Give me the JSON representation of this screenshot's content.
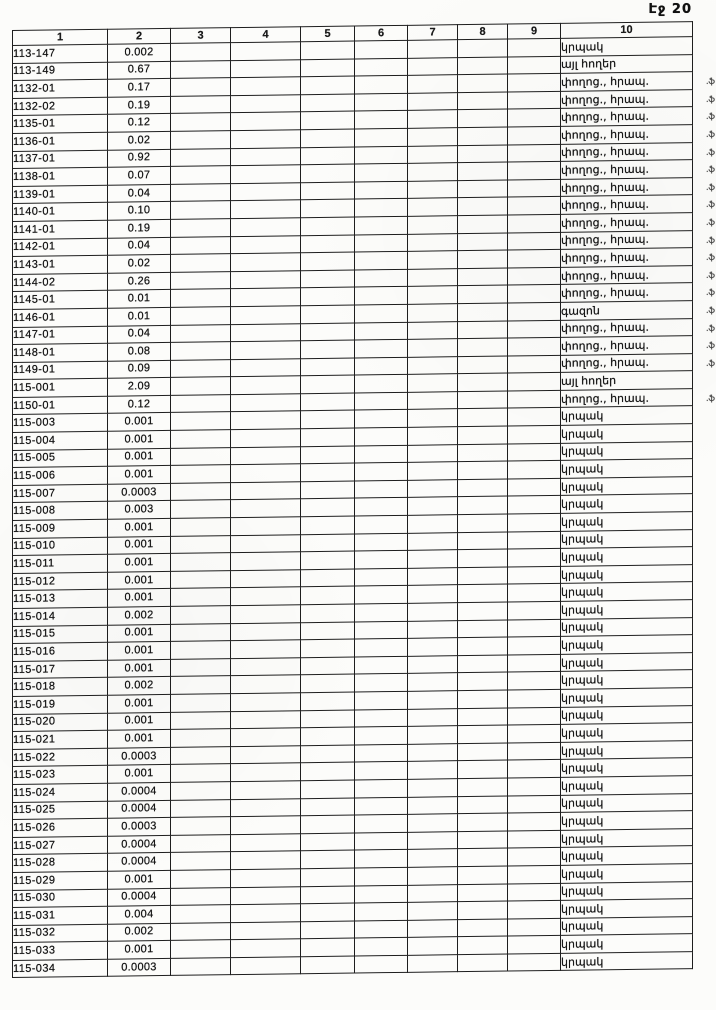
{
  "page": {
    "label": "Էջ 20"
  },
  "colors": {
    "ink": "#161616",
    "border": "#1e1e1e",
    "paper": "#fcfcfa",
    "mark": "#4a4a4a"
  },
  "table": {
    "columns": [
      "1",
      "2",
      "3",
      "4",
      "5",
      "6",
      "7",
      "8",
      "9",
      "10"
    ],
    "mark_glyph": ".ֆ",
    "rows": [
      {
        "code": "113-147",
        "area": "0.002",
        "use": "կրպակ",
        "mark": false
      },
      {
        "code": "113-149",
        "area": "0.67",
        "use": "այլ հողեր",
        "mark": false
      },
      {
        "code": "1132-01",
        "area": "0.17",
        "use": "փողոց., հրապ.",
        "mark": true
      },
      {
        "code": "1132-02",
        "area": "0.19",
        "use": "փողոց., հրապ.",
        "mark": true
      },
      {
        "code": "1135-01",
        "area": "0.12",
        "use": "փողոց., հրապ.",
        "mark": true
      },
      {
        "code": "1136-01",
        "area": "0.02",
        "use": "փողոց., հրապ.",
        "mark": true
      },
      {
        "code": "1137-01",
        "area": "0.92",
        "use": "փողոց., հրապ.",
        "mark": true
      },
      {
        "code": "1138-01",
        "area": "0.07",
        "use": "փողոց., հրապ.",
        "mark": true
      },
      {
        "code": "1139-01",
        "area": "0.04",
        "use": "փողոց., հրապ.",
        "mark": true
      },
      {
        "code": "1140-01",
        "area": "0.10",
        "use": "փողոց., հրապ.",
        "mark": true
      },
      {
        "code": "1141-01",
        "area": "0.19",
        "use": "փողոց., հրապ.",
        "mark": true
      },
      {
        "code": "1142-01",
        "area": "0.04",
        "use": "փողոց., հրապ.",
        "mark": true
      },
      {
        "code": "1143-01",
        "area": "0.02",
        "use": "փողոց., հրապ.",
        "mark": true
      },
      {
        "code": "1144-02",
        "area": "0.26",
        "use": "փողոց., հրապ.",
        "mark": true
      },
      {
        "code": "1145-01",
        "area": "0.01",
        "use": "փողոց., հրապ.",
        "mark": true
      },
      {
        "code": "1146-01",
        "area": "0.01",
        "use": "գազոն",
        "mark": true
      },
      {
        "code": "1147-01",
        "area": "0.04",
        "use": "փողոց., հրապ.",
        "mark": true
      },
      {
        "code": "1148-01",
        "area": "0.08",
        "use": "փողոց., հրապ.",
        "mark": true
      },
      {
        "code": "1149-01",
        "area": "0.09",
        "use": "փողոց., հրապ.",
        "mark": true
      },
      {
        "code": "115-001",
        "area": "2.09",
        "use": "այլ հողեր",
        "mark": false
      },
      {
        "code": "1150-01",
        "area": "0.12",
        "use": "փողոց., հրապ.",
        "mark": true
      },
      {
        "code": "115-003",
        "area": "0.001",
        "use": "կրպակ",
        "mark": false
      },
      {
        "code": "115-004",
        "area": "0.001",
        "use": "կրպակ",
        "mark": false
      },
      {
        "code": "115-005",
        "area": "0.001",
        "use": "կրպակ",
        "mark": false
      },
      {
        "code": "115-006",
        "area": "0.001",
        "use": "կրպակ",
        "mark": false
      },
      {
        "code": "115-007",
        "area": "0.0003",
        "use": "կրպակ",
        "mark": false
      },
      {
        "code": "115-008",
        "area": "0.003",
        "use": "կրպակ",
        "mark": false
      },
      {
        "code": "115-009",
        "area": "0.001",
        "use": "կրպակ",
        "mark": false
      },
      {
        "code": "115-010",
        "area": "0.001",
        "use": "կրպակ",
        "mark": false
      },
      {
        "code": "115-011",
        "area": "0.001",
        "use": "կրպակ",
        "mark": false
      },
      {
        "code": "115-012",
        "area": "0.001",
        "use": "կրպակ",
        "mark": false
      },
      {
        "code": "115-013",
        "area": "0.001",
        "use": "կրպակ",
        "mark": false
      },
      {
        "code": "115-014",
        "area": "0.002",
        "use": "կրպակ",
        "mark": false
      },
      {
        "code": "115-015",
        "area": "0.001",
        "use": "կրպակ",
        "mark": false
      },
      {
        "code": "115-016",
        "area": "0.001",
        "use": "կրպակ",
        "mark": false
      },
      {
        "code": "115-017",
        "area": "0.001",
        "use": "կրպակ",
        "mark": false
      },
      {
        "code": "115-018",
        "area": "0.002",
        "use": "կրպակ",
        "mark": false
      },
      {
        "code": "115-019",
        "area": "0.001",
        "use": "կրպակ",
        "mark": false
      },
      {
        "code": "115-020",
        "area": "0.001",
        "use": "կրպակ",
        "mark": false
      },
      {
        "code": "115-021",
        "area": "0.001",
        "use": "կրպակ",
        "mark": false
      },
      {
        "code": "115-022",
        "area": "0.0003",
        "use": "կրպակ",
        "mark": false
      },
      {
        "code": "115-023",
        "area": "0.001",
        "use": "կրպակ",
        "mark": false
      },
      {
        "code": "115-024",
        "area": "0.0004",
        "use": "կրպակ",
        "mark": false
      },
      {
        "code": "115-025",
        "area": "0.0004",
        "use": "կրպակ",
        "mark": false
      },
      {
        "code": "115-026",
        "area": "0.0003",
        "use": "կրպակ",
        "mark": false
      },
      {
        "code": "115-027",
        "area": "0.0004",
        "use": "կրպակ",
        "mark": false
      },
      {
        "code": "115-028",
        "area": "0.0004",
        "use": "կրպակ",
        "mark": false
      },
      {
        "code": "115-029",
        "area": "0.001",
        "use": "կրպակ",
        "mark": false
      },
      {
        "code": "115-030",
        "area": "0.0004",
        "use": "կրպակ",
        "mark": false
      },
      {
        "code": "115-031",
        "area": "0.004",
        "use": "կրպակ",
        "mark": false
      },
      {
        "code": "115-032",
        "area": "0.002",
        "use": "կրպակ",
        "mark": false
      },
      {
        "code": "115-033",
        "area": "0.001",
        "use": "կրպակ",
        "mark": false
      },
      {
        "code": "115-034",
        "area": "0.0003",
        "use": "կրպակ",
        "mark": false
      }
    ]
  }
}
